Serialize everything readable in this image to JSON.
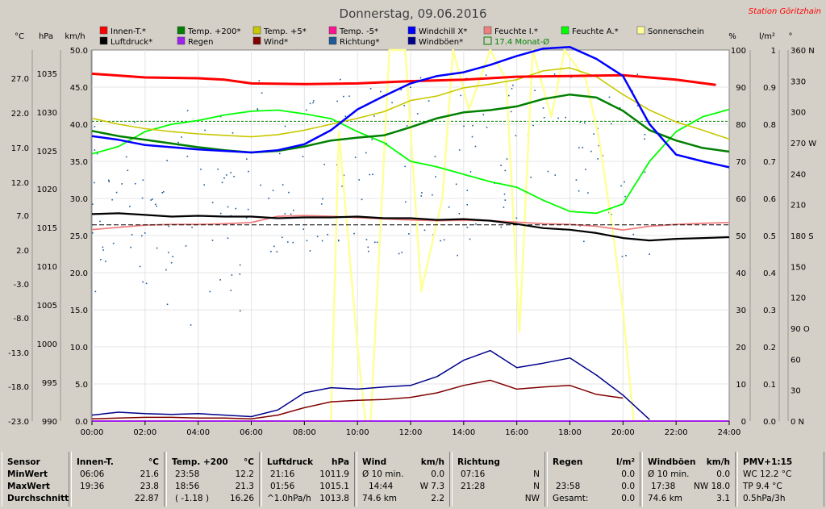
{
  "title": "Donnerstag, 09.06.2016",
  "station": "Station Göritzhain",
  "axes": {
    "temp_unit": "°C",
    "hpa_unit": "hPa",
    "kmh_unit": "km/h",
    "pct_unit": "%",
    "lm2_unit": "l/m²",
    "deg_unit": "°",
    "temp_ticks": [
      "27.0",
      "22.0",
      "17.0",
      "12.0",
      "7.0",
      "2.0",
      "-3.0",
      "-8.0",
      "-13.0",
      "-18.0",
      "-23.0"
    ],
    "hpa_ticks": [
      "1035",
      "1030",
      "1025",
      "1020",
      "1015",
      "1010",
      "1005",
      "1000",
      "995",
      "990"
    ],
    "kmh_ticks": [
      "50.0",
      "45.0",
      "40.0",
      "35.0",
      "30.0",
      "25.0",
      "20.0",
      "15.0",
      "10.0",
      "5.0",
      "0.0"
    ],
    "pct_ticks": [
      "100",
      "90",
      "80",
      "70",
      "60",
      "50",
      "40",
      "30",
      "20",
      "10",
      "0"
    ],
    "lm2_ticks": [
      "1",
      "0.9",
      "0.8",
      "0.7",
      "0.6",
      "0.5",
      "0.4",
      "0.3",
      "0.2",
      "0.1",
      "0.0"
    ],
    "deg_ticks": [
      "360 N",
      "330",
      "300",
      "270 W",
      "240",
      "210",
      "180 S",
      "150",
      "120",
      "90 O",
      "60",
      "30",
      "0 N"
    ],
    "x_ticks": [
      "00:00",
      "02:00",
      "04:00",
      "06:00",
      "08:00",
      "10:00",
      "12:00",
      "14:00",
      "16:00",
      "18:00",
      "20:00",
      "22:00",
      "24:00"
    ]
  },
  "legend": [
    {
      "label": "Innen-T.*",
      "color": "#ff0000"
    },
    {
      "label": "Temp. +200*",
      "color": "#008000"
    },
    {
      "label": "Temp. +5*",
      "color": "#c8c800"
    },
    {
      "label": "Temp. -5*",
      "color": "#ff1493"
    },
    {
      "label": "Windchill X*",
      "color": "#0000ff"
    },
    {
      "label": "Feuchte I.*",
      "color": "#f08080"
    },
    {
      "label": "Feuchte A.*",
      "color": "#00ff00"
    },
    {
      "label": "Sonnenschein",
      "color": "#ffff99"
    },
    {
      "label": "Luftdruck*",
      "color": "#000000"
    },
    {
      "label": "Regen",
      "color": "#a020f0"
    },
    {
      "label": "Wind*",
      "color": "#800000"
    },
    {
      "label": "Richtung*",
      "color": "#1e5a96"
    },
    {
      "label": "Windböen*",
      "color": "#00008b"
    },
    {
      "label": "17.4 Monat-Ø",
      "color": "#008000",
      "outline": true
    }
  ],
  "chart_data": {
    "type": "line",
    "title": "Donnerstag, 09.06.2016",
    "x_unit": "hour",
    "xlim": [
      0,
      24
    ],
    "left_axes": {
      "temp_c": [
        -23,
        27
      ],
      "pressure_hpa": [
        990,
        1035
      ],
      "wind_kmh": [
        0,
        50
      ]
    },
    "right_axes": {
      "humidity_pct": [
        0,
        100
      ],
      "rain_lm2": [
        0,
        1
      ],
      "direction_deg": [
        0,
        360
      ]
    },
    "monthly_mean_c": 17.4,
    "series": [
      {
        "name": "Innen-T.*",
        "axis": "temp_c",
        "x": [
          0,
          2,
          4,
          5,
          6,
          8,
          10,
          12,
          14,
          16,
          18,
          20,
          22,
          23.5
        ],
        "y": [
          23.8,
          23.3,
          23.2,
          23.0,
          22.5,
          22.4,
          22.5,
          22.8,
          23.0,
          23.4,
          23.5,
          23.6,
          23.0,
          22.3
        ]
      },
      {
        "name": "Temp. +200*",
        "axis": "temp_c",
        "x": [
          0,
          1,
          2,
          3,
          4,
          5,
          6,
          7,
          8,
          9,
          10,
          11,
          12,
          13,
          14,
          15,
          16,
          17,
          18,
          19,
          20,
          21,
          22,
          23,
          24
        ],
        "y": [
          16.1,
          15.4,
          14.9,
          14.4,
          13.9,
          13.5,
          13.2,
          13.4,
          14.0,
          14.8,
          15.2,
          15.5,
          16.6,
          17.8,
          18.6,
          18.9,
          19.4,
          20.4,
          21.0,
          20.6,
          18.8,
          16.2,
          14.8,
          13.8,
          13.3
        ]
      },
      {
        "name": "Temp. +5*",
        "axis": "temp_c",
        "x": [
          0,
          1,
          2,
          3,
          4,
          5,
          6,
          7,
          8,
          9,
          10,
          11,
          12,
          13,
          14,
          15,
          16,
          17,
          18,
          19,
          20,
          21,
          22,
          23,
          24
        ],
        "y": [
          17.8,
          17.0,
          16.4,
          16.0,
          15.7,
          15.5,
          15.3,
          15.6,
          16.2,
          17.0,
          17.8,
          18.7,
          20.2,
          20.8,
          21.9,
          22.4,
          23.0,
          24.2,
          24.6,
          23.4,
          21.0,
          18.9,
          17.3,
          16.2,
          15.0
        ]
      },
      {
        "name": "Windchill X*",
        "axis": "temp_c",
        "x": [
          0,
          1,
          2,
          3,
          4,
          5,
          6,
          7,
          8,
          9,
          10,
          11,
          12,
          13,
          14,
          15,
          16,
          17,
          18,
          19,
          20,
          21,
          22,
          23,
          24
        ],
        "y": [
          15.4,
          14.9,
          14.2,
          13.9,
          13.6,
          13.4,
          13.2,
          13.5,
          14.3,
          16.2,
          19.0,
          20.8,
          22.5,
          23.5,
          24.0,
          25.0,
          26.2,
          27.2,
          27.4,
          25.8,
          23.5,
          17.0,
          12.9,
          12.0,
          11.2
        ]
      },
      {
        "name": "Feuchte I.*",
        "axis": "humidity_pct",
        "x": [
          0,
          1,
          2,
          3,
          4,
          5,
          6,
          7,
          8,
          9,
          10,
          11,
          12,
          13,
          14,
          15,
          16,
          17,
          18,
          19,
          20,
          21,
          22,
          23,
          24
        ],
        "y": [
          51.6,
          52.2,
          52.8,
          53.0,
          53.0,
          53.2,
          53.5,
          55.2,
          55.4,
          55.2,
          54.8,
          54.5,
          54.2,
          54.0,
          54.1,
          54.0,
          53.6,
          53.2,
          53.0,
          52.5,
          51.5,
          52.5,
          53.0,
          53.3,
          53.5
        ]
      },
      {
        "name": "Feuchte A.*",
        "axis": "humidity_pct",
        "x": [
          0,
          1,
          2,
          3,
          4,
          5,
          6,
          7,
          8,
          9,
          10,
          11,
          12,
          13,
          14,
          15,
          16,
          17,
          18,
          19,
          20,
          21,
          22,
          23,
          24
        ],
        "y": [
          72.0,
          74.0,
          78.0,
          80.0,
          81.0,
          82.5,
          83.5,
          83.8,
          82.8,
          81.5,
          78.0,
          75.0,
          70.0,
          68.5,
          66.5,
          64.5,
          63.0,
          59.5,
          56.5,
          56.0,
          58.5,
          70.0,
          78.0,
          82.0,
          84.0
        ]
      },
      {
        "name": "Luftdruck*",
        "axis": "pressure_hpa",
        "x": [
          0,
          1,
          2,
          3,
          4,
          5,
          6,
          7,
          8,
          9,
          10,
          11,
          12,
          13,
          14,
          15,
          16,
          17,
          18,
          19,
          20,
          21,
          22,
          23,
          24
        ],
        "y": [
          1015.1,
          1015.2,
          1015.0,
          1014.8,
          1014.9,
          1014.8,
          1014.8,
          1014.6,
          1014.7,
          1014.7,
          1014.8,
          1014.6,
          1014.6,
          1014.4,
          1014.5,
          1014.3,
          1013.9,
          1013.4,
          1013.2,
          1012.8,
          1012.2,
          1011.9,
          1012.1,
          1012.2,
          1012.3
        ]
      },
      {
        "name": "Wind*",
        "axis": "wind_kmh",
        "x": [
          0,
          1,
          2,
          3,
          4,
          5,
          6,
          7,
          8,
          9,
          10,
          11,
          12,
          13,
          14,
          15,
          16,
          17,
          18,
          19,
          20
        ],
        "y": [
          0.3,
          0.4,
          0.5,
          0.5,
          0.4,
          0.4,
          0.3,
          0.8,
          1.8,
          2.6,
          2.8,
          2.9,
          3.2,
          3.8,
          4.8,
          5.5,
          4.3,
          4.6,
          4.8,
          3.6,
          3.1
        ]
      },
      {
        "name": "Windböen*",
        "axis": "wind_kmh",
        "x": [
          0,
          1,
          2,
          3,
          4,
          5,
          6,
          7,
          8,
          9,
          10,
          11,
          12,
          13,
          14,
          15,
          16,
          17,
          18,
          19,
          20,
          21
        ],
        "y": [
          0.8,
          1.2,
          1.0,
          0.9,
          1.0,
          0.8,
          0.6,
          1.5,
          3.8,
          4.5,
          4.3,
          4.6,
          4.8,
          6.0,
          8.2,
          9.5,
          7.2,
          7.8,
          8.5,
          6.2,
          3.5,
          0.2
        ]
      },
      {
        "name": "Sonnenschein",
        "axis": "humidity_pct",
        "x": [
          0,
          8.9,
          9,
          9.3,
          10,
          10.3,
          10.5,
          11.2,
          11.8,
          12.4,
          13.2,
          13.6,
          14.2,
          15.0,
          15.6,
          16.1,
          16.6,
          17.3,
          17.8,
          18.6,
          19.1,
          19.6,
          20.0,
          20.4,
          24
        ],
        "y": [
          0,
          0,
          0,
          78,
          20,
          0,
          0,
          100,
          100,
          35,
          60,
          100,
          84,
          100,
          92,
          24,
          100,
          82,
          100,
          92,
          76,
          52,
          30,
          0,
          0
        ]
      },
      {
        "name": "Regen",
        "axis": "rain_lm2",
        "x": [
          0,
          24
        ],
        "y": [
          0,
          0
        ]
      }
    ]
  },
  "stats": {
    "sensor": {
      "h": "Sensor",
      "r1": "MinWert",
      "r2": "MaxWert",
      "r3": "Durchschnitt"
    },
    "innen": {
      "h1": "Innen-T.",
      "h2": "°C",
      "r1a": "06:06",
      "r1b": "21.6",
      "r2a": "19:36",
      "r2b": "23.8",
      "r3b": "22.87"
    },
    "temp": {
      "h1": "Temp. +200",
      "h2": "°C",
      "r1a": "23:58",
      "r1b": "12.2",
      "r2a": "18:56",
      "r2b": "21.3",
      "r3a": "( -1.18 )",
      "r3b": "16.26"
    },
    "luft": {
      "h1": "Luftdruck",
      "h2": "hPa",
      "r1a": "21:16",
      "r1b": "1011.9",
      "r2a": "01:56",
      "r2b": "1015.1",
      "r3a": "^1.0hPa/h",
      "r3b": "1013.8"
    },
    "wind": {
      "h1": "Wind",
      "h2": "km/h",
      "r1a": "Ø 10 min.",
      "r1b": "0.0",
      "r2a": "14:44",
      "r2b": "W 7.3",
      "r3a": "74.6 km",
      "r3b": "2.2"
    },
    "richtung": {
      "h1": "Richtung",
      "r1a": "07:16",
      "r1b": "N",
      "r2a": "21:28",
      "r2b": "N",
      "r3b": "NW"
    },
    "regen": {
      "h1": "Regen",
      "h2": "l/m²",
      "r1b": "0.0",
      "r2a": "23:58",
      "r2b": "0.0",
      "r3a": "Gesamt:",
      "r3b": "0.0"
    },
    "boeen": {
      "h1": "Windböen",
      "h2": "km/h",
      "r1a": "Ø 10 min.",
      "r1b": "0.0",
      "r2a": "17:38",
      "r2b": "NW 18.0",
      "r3a": "74.6 km",
      "r3b": "3.1"
    },
    "pmv": {
      "h1": "PMV+1:15",
      "r1": "WC 12.2 °C",
      "r2": "TP 9.4 °C",
      "r3": "0.5hPa/3h"
    }
  }
}
